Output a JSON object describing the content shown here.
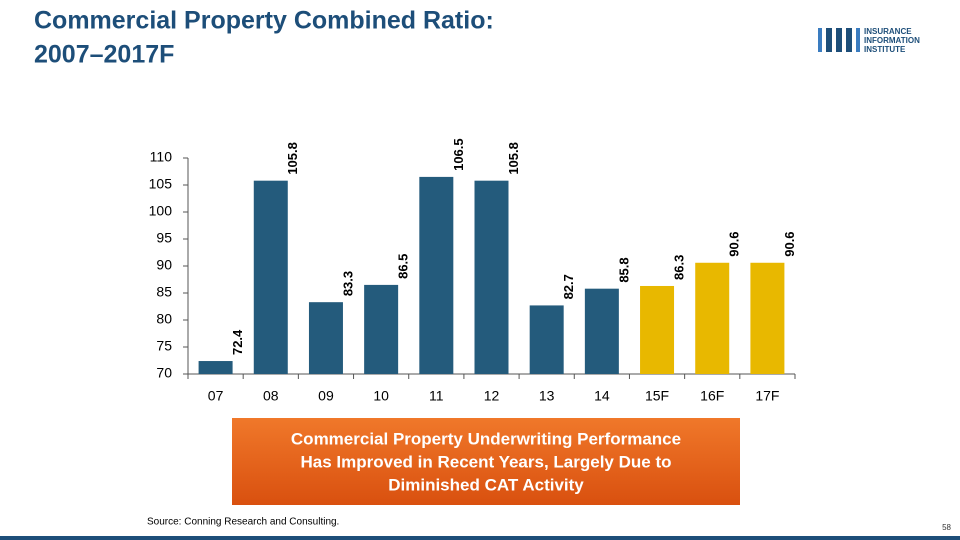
{
  "header": {
    "title_lines": [
      "Commercial Property Combined Ratio:",
      "2007–2017F"
    ],
    "logo_lines": [
      "INSURANCE",
      "INFORMATION",
      "INSTITUTE"
    ]
  },
  "chart_data": {
    "type": "bar",
    "categories": [
      "07",
      "08",
      "09",
      "10",
      "11",
      "12",
      "13",
      "14",
      "15F",
      "16F",
      "17F"
    ],
    "values": [
      72.4,
      105.8,
      83.3,
      86.5,
      106.5,
      105.8,
      82.7,
      85.8,
      86.3,
      90.6,
      90.6
    ],
    "colors": [
      "#245b7c",
      "#245b7c",
      "#245b7c",
      "#245b7c",
      "#245b7c",
      "#245b7c",
      "#245b7c",
      "#245b7c",
      "#e8b800",
      "#e8b800",
      "#e8b800"
    ],
    "ylim": [
      70,
      110
    ],
    "yticks": [
      70,
      75,
      80,
      85,
      90,
      95,
      100,
      105,
      110
    ],
    "annotation_lines": [
      "Commercial Property Underwriting Performance",
      "Has Improved in Recent Years, Largely Due to",
      "Diminished CAT Activity"
    ]
  },
  "footer": {
    "source": "Source: Conning Research and Consulting.",
    "page": "58"
  }
}
